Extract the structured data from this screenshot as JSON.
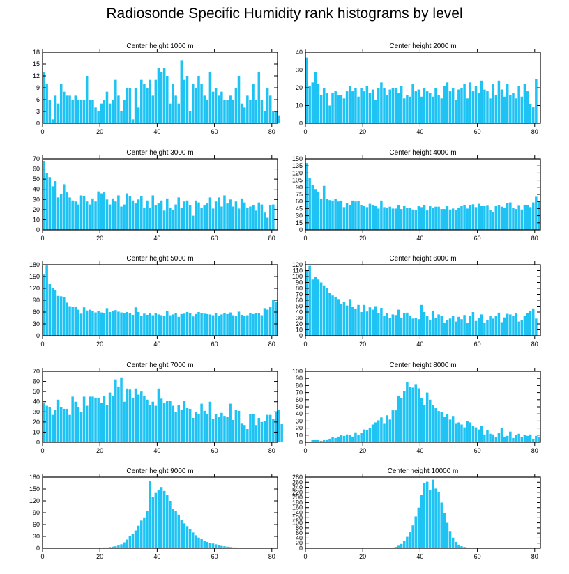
{
  "title": "Radiosonde Specific Humidity rank histograms by level",
  "bar_color": "#1ec3f4",
  "chart_data": [
    {
      "type": "bar",
      "title": "Center height 1000 m",
      "xlim": [
        0,
        82
      ],
      "ylim": [
        0,
        18
      ],
      "xticks": [
        0,
        20,
        40,
        60,
        80
      ],
      "yticks": [
        0,
        3,
        6,
        9,
        12,
        15,
        18
      ],
      "values": [
        13,
        10,
        6,
        1,
        7,
        5,
        10,
        8,
        7,
        7,
        6,
        7,
        6,
        6,
        6,
        12,
        6,
        6,
        4,
        3,
        5,
        6,
        8,
        5,
        6,
        11,
        7,
        3,
        6,
        9,
        9,
        1,
        9,
        4,
        11,
        10,
        9,
        11,
        7,
        11,
        14,
        13,
        14,
        12,
        5,
        10,
        7,
        5,
        16,
        11,
        12,
        3,
        10,
        9,
        12,
        10,
        7,
        6,
        13,
        8,
        9,
        7,
        8,
        6,
        6,
        7,
        6,
        9,
        12,
        5,
        4,
        7,
        6,
        10,
        6,
        13,
        6,
        3,
        9,
        7,
        3,
        3,
        2
      ]
    },
    {
      "type": "bar",
      "title": "Center height 2000 m",
      "xlim": [
        0,
        82
      ],
      "ylim": [
        0,
        40
      ],
      "xticks": [
        0,
        20,
        40,
        60,
        80
      ],
      "yticks": [
        0,
        10,
        20,
        30,
        40
      ],
      "values": [
        37,
        21,
        23,
        29,
        22,
        16,
        20,
        17,
        10,
        17,
        18,
        16,
        16,
        14,
        18,
        21,
        18,
        20,
        15,
        20,
        18,
        21,
        17,
        19,
        13,
        20,
        23,
        20,
        16,
        19,
        20,
        20,
        17,
        21,
        14,
        16,
        15,
        22,
        18,
        19,
        15,
        20,
        18,
        17,
        15,
        20,
        16,
        14,
        21,
        23,
        18,
        20,
        13,
        19,
        20,
        22,
        14,
        23,
        18,
        21,
        17,
        24,
        19,
        18,
        14,
        22,
        16,
        24,
        19,
        15,
        22,
        16,
        17,
        14,
        21,
        15,
        22,
        18,
        11,
        9,
        25
      ]
    },
    {
      "type": "bar",
      "title": "Center height 3000 m",
      "xlim": [
        0,
        82
      ],
      "ylim": [
        0,
        70
      ],
      "xticks": [
        0,
        20,
        40,
        60,
        80
      ],
      "yticks": [
        0,
        10,
        20,
        30,
        40,
        50,
        60,
        70
      ],
      "values": [
        68,
        56,
        52,
        43,
        48,
        32,
        35,
        45,
        37,
        32,
        29,
        28,
        25,
        34,
        33,
        28,
        25,
        31,
        28,
        38,
        36,
        37,
        30,
        25,
        31,
        28,
        34,
        23,
        25,
        36,
        33,
        29,
        26,
        30,
        33,
        22,
        29,
        22,
        34,
        24,
        26,
        29,
        19,
        31,
        22,
        20,
        25,
        32,
        22,
        28,
        29,
        24,
        14,
        29,
        27,
        22,
        24,
        26,
        32,
        21,
        28,
        32,
        23,
        34,
        26,
        30,
        23,
        28,
        21,
        31,
        27,
        22,
        23,
        24,
        19,
        27,
        25,
        17,
        12,
        24,
        25
      ]
    },
    {
      "type": "bar",
      "title": "Center height 4000 m",
      "xlim": [
        0,
        82
      ],
      "ylim": [
        0,
        150
      ],
      "xticks": [
        0,
        20,
        40,
        60,
        80
      ],
      "yticks": [
        0,
        15,
        30,
        45,
        60,
        75,
        90,
        105,
        120,
        135,
        150
      ],
      "values": [
        141,
        109,
        95,
        85,
        80,
        66,
        93,
        66,
        63,
        62,
        66,
        60,
        62,
        48,
        57,
        52,
        62,
        60,
        61,
        52,
        50,
        48,
        55,
        53,
        50,
        45,
        62,
        48,
        46,
        49,
        45,
        45,
        52,
        44,
        50,
        47,
        46,
        43,
        42,
        50,
        48,
        53,
        41,
        50,
        47,
        49,
        49,
        44,
        44,
        50,
        43,
        45,
        42,
        47,
        50,
        52,
        45,
        52,
        54,
        48,
        55,
        50,
        50,
        51,
        42,
        37,
        50,
        52,
        49,
        47,
        57,
        58,
        47,
        44,
        51,
        43,
        53,
        52,
        48,
        58,
        70,
        61
      ]
    },
    {
      "type": "bar",
      "title": "Center height 5000 m",
      "xlim": [
        0,
        82
      ],
      "ylim": [
        0,
        180
      ],
      "xticks": [
        0,
        20,
        40,
        60,
        80
      ],
      "yticks": [
        0,
        30,
        60,
        90,
        120,
        150,
        180
      ],
      "values": [
        155,
        178,
        132,
        120,
        115,
        101,
        100,
        98,
        84,
        75,
        74,
        73,
        66,
        56,
        72,
        64,
        66,
        62,
        59,
        62,
        59,
        57,
        70,
        60,
        62,
        65,
        61,
        59,
        57,
        60,
        58,
        53,
        72,
        60,
        51,
        56,
        53,
        58,
        52,
        57,
        54,
        52,
        50,
        63,
        52,
        54,
        58,
        48,
        55,
        56,
        60,
        58,
        49,
        55,
        60,
        57,
        56,
        55,
        54,
        52,
        58,
        50,
        54,
        57,
        55,
        59,
        52,
        51,
        61,
        53,
        51,
        52,
        58,
        55,
        57,
        58,
        52,
        70,
        66,
        74,
        90,
        85
      ]
    },
    {
      "type": "bar",
      "title": "Center height 6000 m",
      "xlim": [
        0,
        82
      ],
      "ylim": [
        0,
        120
      ],
      "xticks": [
        0,
        20,
        40,
        60,
        80
      ],
      "yticks": [
        0,
        10,
        20,
        30,
        40,
        50,
        60,
        70,
        80,
        90,
        100,
        110,
        120
      ],
      "values": [
        110,
        118,
        95,
        100,
        95,
        90,
        85,
        80,
        72,
        68,
        66,
        62,
        54,
        57,
        51,
        62,
        49,
        46,
        52,
        40,
        52,
        41,
        48,
        44,
        50,
        38,
        47,
        34,
        38,
        30,
        36,
        35,
        44,
        30,
        38,
        39,
        34,
        29,
        30,
        28,
        52,
        40,
        34,
        26,
        42,
        30,
        36,
        34,
        22,
        27,
        29,
        34,
        24,
        32,
        28,
        35,
        22,
        33,
        40,
        25,
        30,
        36,
        22,
        27,
        34,
        29,
        33,
        39,
        23,
        31,
        37,
        36,
        34,
        38,
        24,
        27,
        33,
        38,
        42,
        46,
        29
      ]
    },
    {
      "type": "bar",
      "title": "Center height 7000 m",
      "xlim": [
        0,
        82
      ],
      "ylim": [
        0,
        70
      ],
      "xticks": [
        0,
        20,
        40,
        60,
        80
      ],
      "yticks": [
        0,
        10,
        20,
        30,
        40,
        50,
        60,
        70
      ],
      "values": [
        39,
        36,
        35,
        27,
        32,
        42,
        35,
        33,
        33,
        27,
        45,
        40,
        35,
        30,
        45,
        36,
        45,
        45,
        44,
        44,
        39,
        46,
        37,
        49,
        46,
        62,
        55,
        64,
        40,
        53,
        52,
        44,
        53,
        47,
        50,
        46,
        42,
        37,
        40,
        36,
        53,
        43,
        39,
        41,
        41,
        36,
        30,
        37,
        32,
        41,
        34,
        33,
        24,
        30,
        28,
        38,
        31,
        28,
        40,
        23,
        28,
        25,
        29,
        26,
        25,
        38,
        22,
        32,
        31,
        19,
        17,
        13,
        28,
        28,
        17,
        24,
        20,
        21,
        27,
        27,
        23,
        30,
        32,
        18
      ]
    },
    {
      "type": "bar",
      "title": "Center height 8000 m",
      "xlim": [
        0,
        82
      ],
      "ylim": [
        0,
        100
      ],
      "xticks": [
        0,
        20,
        40,
        60,
        80
      ],
      "yticks": [
        0,
        10,
        20,
        30,
        40,
        50,
        60,
        70,
        80,
        90,
        100
      ],
      "values": [
        1,
        1,
        3,
        4,
        3,
        2,
        4,
        3,
        5,
        7,
        6,
        8,
        10,
        9,
        11,
        10,
        8,
        14,
        10,
        13,
        18,
        17,
        20,
        25,
        28,
        31,
        35,
        27,
        38,
        32,
        45,
        45,
        65,
        62,
        72,
        85,
        78,
        77,
        82,
        76,
        62,
        52,
        70,
        60,
        52,
        48,
        44,
        43,
        36,
        40,
        32,
        37,
        27,
        28,
        25,
        21,
        30,
        28,
        23,
        21,
        18,
        23,
        11,
        17,
        12,
        11,
        7,
        13,
        20,
        8,
        9,
        15,
        6,
        10,
        12,
        7,
        10,
        9,
        11,
        5,
        9,
        7
      ]
    },
    {
      "type": "bar",
      "title": "Center height 9000 m",
      "xlim": [
        0,
        82
      ],
      "ylim": [
        0,
        180
      ],
      "xticks": [
        0,
        20,
        40,
        60,
        80
      ],
      "yticks": [
        0,
        30,
        60,
        90,
        120,
        150,
        180
      ],
      "values": [
        0,
        0,
        0,
        0,
        0,
        0,
        0,
        0,
        0,
        0,
        0,
        0,
        0,
        0,
        0,
        0,
        0,
        1,
        1,
        1,
        1,
        2,
        2,
        3,
        4,
        5,
        7,
        10,
        15,
        22,
        30,
        37,
        45,
        57,
        70,
        78,
        95,
        170,
        130,
        140,
        148,
        155,
        145,
        135,
        120,
        100,
        95,
        85,
        72,
        63,
        56,
        48,
        40,
        33,
        27,
        23,
        19,
        16,
        14,
        12,
        10,
        8,
        6,
        5,
        4,
        3,
        2,
        2,
        1,
        1,
        1,
        0,
        0,
        0,
        0,
        0,
        0,
        0,
        0,
        0,
        0
      ]
    },
    {
      "type": "bar",
      "title": "Center height 10000 m",
      "xlim": [
        0,
        82
      ],
      "ylim": [
        0,
        280
      ],
      "xticks": [
        0,
        20,
        40,
        60,
        80
      ],
      "yticks": [
        0,
        20,
        40,
        60,
        80,
        100,
        120,
        140,
        160,
        180,
        200,
        220,
        240,
        260,
        280
      ],
      "values": [
        0,
        0,
        0,
        0,
        0,
        0,
        0,
        0,
        0,
        0,
        0,
        0,
        0,
        0,
        0,
        0,
        0,
        0,
        0,
        0,
        0,
        0,
        0,
        0,
        0,
        0,
        0,
        1,
        1,
        2,
        3,
        5,
        10,
        17,
        28,
        45,
        65,
        90,
        125,
        160,
        210,
        258,
        262,
        230,
        270,
        235,
        220,
        180,
        140,
        100,
        68,
        42,
        25,
        14,
        8,
        5,
        3,
        2,
        1,
        1,
        0,
        0,
        0,
        0,
        0,
        0,
        0,
        0,
        0,
        0,
        0,
        0,
        0,
        0,
        0,
        0,
        0,
        0,
        0,
        0,
        0
      ]
    }
  ]
}
